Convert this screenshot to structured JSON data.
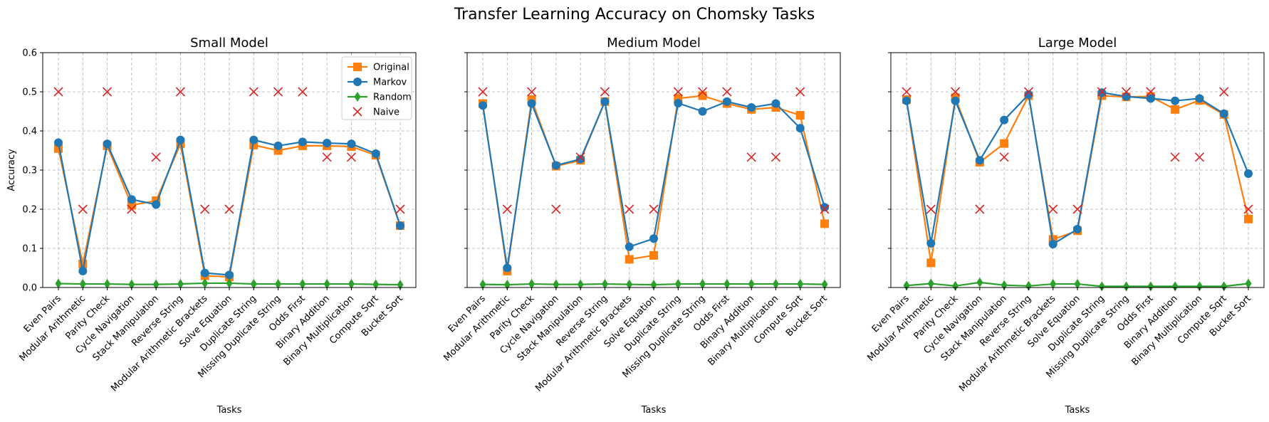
{
  "figure": {
    "title": "Transfer Learning Accuracy on Chomsky Tasks"
  },
  "chart_data": [
    {
      "type": "line",
      "title": "Small Model",
      "xlabel": "Tasks",
      "ylabel": "Accuracy",
      "ylim": [
        0,
        0.6
      ],
      "yticks": [
        "0.0",
        "0.1",
        "0.2",
        "0.3",
        "0.4",
        "0.5",
        "0.6"
      ],
      "grid": true,
      "legend": "top-right",
      "categories": [
        "Even Pairs",
        "Modular Arithmetic",
        "Parity Check",
        "Cycle Navigation",
        "Stack Manipulation",
        "Reverse String",
        "Modular Arithmetic Brackets",
        "Solve Equation",
        "Duplicate String",
        "Missing Duplicate String",
        "Odds First",
        "Binary Addition",
        "Binary Multiplication",
        "Compute Sqrt",
        "Bucket Sort"
      ],
      "series": [
        {
          "name": "Original",
          "color": "#ff7f0e",
          "marker": "square",
          "values": [
            0.355,
            0.06,
            0.362,
            0.21,
            0.222,
            0.367,
            0.03,
            0.027,
            0.364,
            0.35,
            0.362,
            0.362,
            0.36,
            0.338,
            0.158
          ]
        },
        {
          "name": "Markov",
          "color": "#1f77b4",
          "marker": "circle",
          "values": [
            0.37,
            0.042,
            0.367,
            0.225,
            0.212,
            0.377,
            0.037,
            0.032,
            0.377,
            0.362,
            0.372,
            0.369,
            0.367,
            0.342,
            0.158
          ]
        },
        {
          "name": "Random",
          "color": "#2ca02c",
          "marker": "diamond",
          "values": [
            0.01,
            0.009,
            0.009,
            0.008,
            0.008,
            0.009,
            0.011,
            0.011,
            0.009,
            0.009,
            0.009,
            0.009,
            0.009,
            0.008,
            0.007
          ]
        },
        {
          "name": "Naive",
          "color": "#d62728",
          "marker": "x",
          "values": [
            0.5,
            0.2,
            0.5,
            0.2,
            0.333,
            0.5,
            0.2,
            0.2,
            0.5,
            0.5,
            0.5,
            0.333,
            0.333,
            null,
            0.2
          ]
        }
      ]
    },
    {
      "type": "line",
      "title": "Medium Model",
      "xlabel": "Tasks",
      "ylabel": "",
      "ylim": [
        0,
        0.6
      ],
      "grid": true,
      "categories": [
        "Even Pairs",
        "Modular Arithmetic",
        "Parity Check",
        "Cycle Navigation",
        "Stack Manipulation",
        "Reverse String",
        "Modular Arithmetic Brackets",
        "Solve Equation",
        "Duplicate String",
        "Missing Duplicate String",
        "Odds First",
        "Binary Addition",
        "Binary Multiplication",
        "Compute Sqrt",
        "Bucket Sort"
      ],
      "series": [
        {
          "name": "Original",
          "color": "#ff7f0e",
          "marker": "square",
          "values": [
            0.47,
            0.042,
            0.48,
            0.31,
            0.325,
            0.475,
            0.072,
            0.082,
            0.483,
            0.49,
            0.47,
            0.455,
            0.46,
            0.44,
            0.163
          ]
        },
        {
          "name": "Markov",
          "color": "#1f77b4",
          "marker": "circle",
          "values": [
            0.465,
            0.05,
            0.47,
            0.312,
            0.328,
            0.475,
            0.104,
            0.125,
            0.471,
            0.45,
            0.475,
            0.46,
            0.47,
            0.407,
            0.205
          ]
        },
        {
          "name": "Random",
          "color": "#2ca02c",
          "marker": "diamond",
          "values": [
            0.008,
            0.007,
            0.009,
            0.008,
            0.008,
            0.009,
            0.008,
            0.007,
            0.009,
            0.009,
            0.009,
            0.009,
            0.009,
            0.009,
            0.008
          ]
        },
        {
          "name": "Naive",
          "color": "#d62728",
          "marker": "x",
          "values": [
            0.5,
            0.2,
            0.5,
            0.2,
            0.333,
            0.5,
            0.2,
            0.2,
            0.5,
            0.5,
            0.5,
            0.333,
            0.333,
            0.5,
            0.2
          ]
        }
      ]
    },
    {
      "type": "line",
      "title": "Large Model",
      "xlabel": "Tasks",
      "ylabel": "",
      "ylim": [
        0,
        0.6
      ],
      "grid": true,
      "categories": [
        "Even Pairs",
        "Modular Arithmetic",
        "Parity Check",
        "Cycle Navigation",
        "Stack Manipulation",
        "Reverse String",
        "Modular Arithmetic Brackets",
        "Solve Equation",
        "Duplicate String",
        "Missing Duplicate String",
        "Odds First",
        "Binary Addition",
        "Binary Multiplication",
        "Compute Sqrt",
        "Bucket Sort"
      ],
      "series": [
        {
          "name": "Original",
          "color": "#ff7f0e",
          "marker": "square",
          "values": [
            0.48,
            0.063,
            0.485,
            0.32,
            0.368,
            0.49,
            0.123,
            0.145,
            0.49,
            0.487,
            0.488,
            0.455,
            0.478,
            0.442,
            0.175
          ]
        },
        {
          "name": "Markov",
          "color": "#1f77b4",
          "marker": "circle",
          "values": [
            0.477,
            0.113,
            0.477,
            0.325,
            0.428,
            0.493,
            0.111,
            0.149,
            0.498,
            0.488,
            0.483,
            0.477,
            0.483,
            0.444,
            0.291
          ]
        },
        {
          "name": "Random",
          "color": "#2ca02c",
          "marker": "diamond",
          "values": [
            0.005,
            0.01,
            0.004,
            0.013,
            0.006,
            0.004,
            0.009,
            0.009,
            0.003,
            0.003,
            0.003,
            0.003,
            0.003,
            0.003,
            0.01
          ]
        },
        {
          "name": "Naive",
          "color": "#d62728",
          "marker": "x",
          "values": [
            0.5,
            0.2,
            0.5,
            0.2,
            0.333,
            0.5,
            0.2,
            0.2,
            0.5,
            0.5,
            0.5,
            0.333,
            0.333,
            0.5,
            0.2
          ]
        }
      ]
    }
  ]
}
